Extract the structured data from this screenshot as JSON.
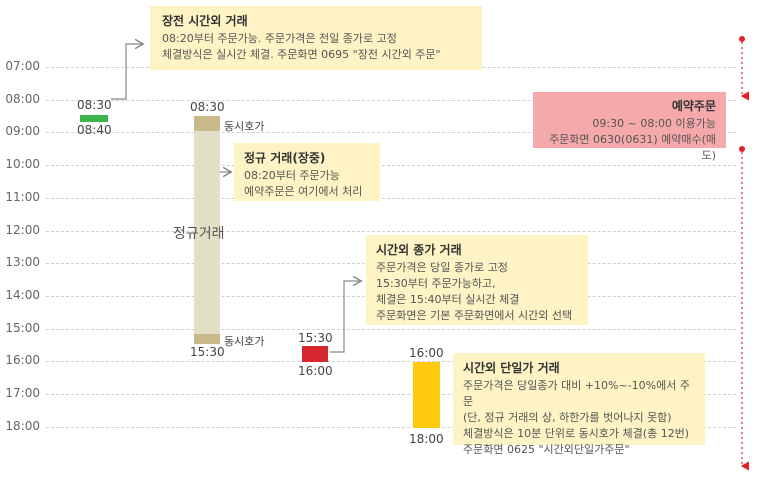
{
  "time_axis": [
    "07:00",
    "08:00",
    "09:00",
    "10:00",
    "11:00",
    "12:00",
    "13:00",
    "14:00",
    "15:00",
    "16:00",
    "17:00",
    "18:00"
  ],
  "pre_market": {
    "title": "장전 시간외 거래",
    "lines": [
      "08:20부터 주문가능. 주문가격은 전일 종가로 고정",
      "체결방식은 실시간 체결. 주문화면 0695 \"장전 시간외 주문\""
    ],
    "start": "08:30",
    "end": "08:40",
    "color": "#3cb64a"
  },
  "regular": {
    "title": "정규 거래(장중)",
    "lines": [
      "08:20부터 주문가능",
      "예약주문은 여기에서 처리"
    ],
    "start": "08:30",
    "end": "15:30",
    "bar_label": "정규거래",
    "auction_open": "동시호가",
    "auction_close": "동시호가",
    "color": "#e3dfc6",
    "auction_color": "#c9b98a"
  },
  "closing_price": {
    "title": "시간외 종가 거래",
    "lines": [
      "주문가격은 당일 종가로 고정",
      "15:30부터 주문가능하고,",
      "체결은 15:40부터 실시간 체결",
      "주문화면은 기본 주문화면에서 시간외 선택"
    ],
    "start": "15:30",
    "end": "16:00",
    "color": "#d7282f"
  },
  "single_price": {
    "title": "시간외 단일가 거래",
    "lines": [
      "주문가격은 당일종가 대비 +10%~-10%에서 주문",
      "(단, 정규 거래의 상, 하한가를 벗어나지 못함)",
      "체결방식은 10분 단위로 동시호가 체결(총 12번)",
      "주문화면 0625 \"시간외단일가주문\""
    ],
    "start": "16:00",
    "end": "18:00",
    "color": "#ffc90e"
  },
  "reservation": {
    "title": "예약주문",
    "lines": [
      "09:30 ~ 08:00 이용가능",
      "주문화면 0630(0631) 예약매수(매도)"
    ],
    "color": "#f6a9aa",
    "line_color": "#e0222a"
  }
}
